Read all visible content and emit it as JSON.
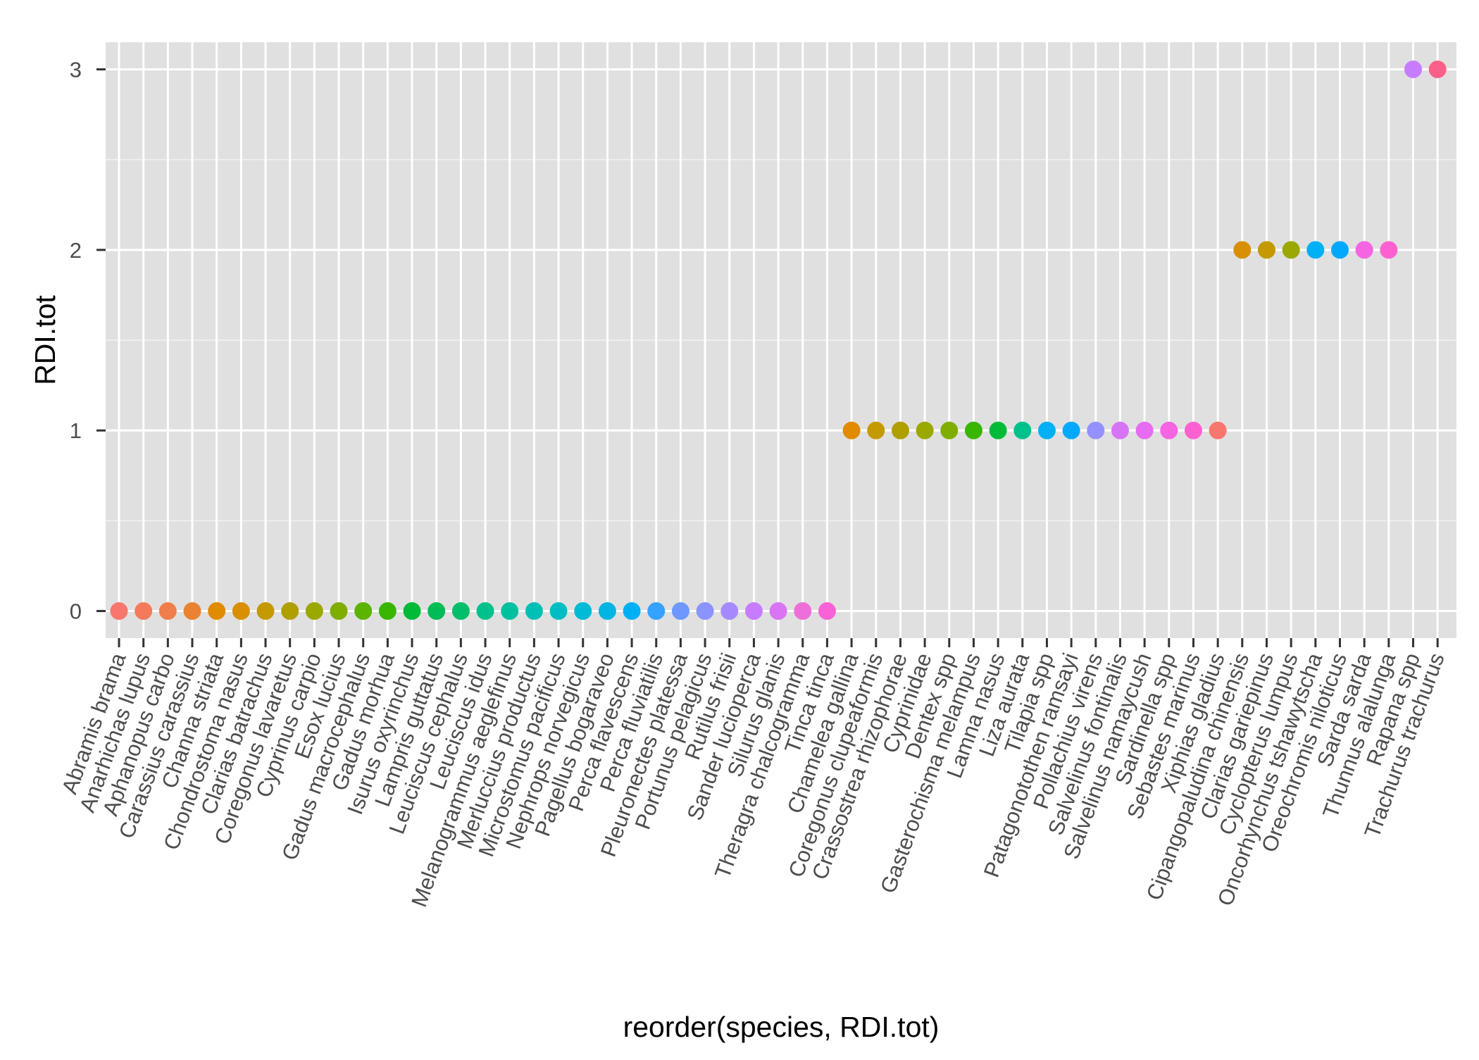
{
  "chart_data": {
    "type": "scatter",
    "xlabel": "reorder(species, RDI.tot)",
    "ylabel": "RDI.tot",
    "ylim": [
      -0.15,
      3.15
    ],
    "y_ticks": [
      0,
      1,
      2,
      3
    ],
    "grid": true,
    "legend": "none",
    "panel_background": "#e0e0e0",
    "grid_color": "#ffffff",
    "categories": [
      "Abramis brama",
      "Anarhichas lupus",
      "Aphanopus carbo",
      "Carassius carassius",
      "Channa striata",
      "Chondrostoma nasus",
      "Clarias batrachus",
      "Coregonus lavaretus",
      "Cyprinus carpio",
      "Esox lucius",
      "Gadus macrocephalus",
      "Gadus morhua",
      "Isurus oxyrinchus",
      "Lampris guttatus",
      "Leuciscus cephalus",
      "Leuciscus idus",
      "Melanogrammus aeglefinus",
      "Merluccius productus",
      "Microstomus pacificus",
      "Nephrops norvegicus",
      "Pagellus bogaraveo",
      "Perca flavescens",
      "Perca fluviatilis",
      "Pleuronectes platessa",
      "Portunus pelagicus",
      "Rutilus frisii",
      "Sander lucioperca",
      "Silurus glanis",
      "Theragra chalcogramma",
      "Tinca tinca",
      "Chamelea gallina",
      "Coregonus clupeaformis",
      "Crassostrea rhizophorae",
      "Cyprinidae",
      "Dentex spp",
      "Gasterochisma melampus",
      "Lamna nasus",
      "Liza aurata",
      "Tilapia spp",
      "Patagonotothen ramsayi",
      "Pollachius virens",
      "Salvelinus fontinalis",
      "Salvelinus namaycush",
      "Sardinella spp",
      "Sebastes marinus",
      "Xiphias gladius",
      "Cipangopaludina chinensis",
      "Clarias gariepinus",
      "Cyclopterus lumpus",
      "Oncorhynchus tshawytscha",
      "Oreochromis niloticus",
      "Sarda sarda",
      "Thunnus alalunga",
      "Rapana spp",
      "Trachurus trachurus"
    ],
    "values": [
      0,
      0,
      0,
      0,
      0,
      0,
      0,
      0,
      0,
      0,
      0,
      0,
      0,
      0,
      0,
      0,
      0,
      0,
      0,
      0,
      0,
      0,
      0,
      0,
      0,
      0,
      0,
      0,
      0,
      0,
      1,
      1,
      1,
      1,
      1,
      1,
      1,
      1,
      1,
      1,
      1,
      1,
      1,
      1,
      1,
      1,
      2,
      2,
      2,
      2,
      2,
      2,
      2,
      3,
      3
    ],
    "colors": [
      "#f8766d",
      "#f47a5c",
      "#f07e4c",
      "#ea8331",
      "#e08b00",
      "#d89000",
      "#c49a00",
      "#b09f00",
      "#9ba800",
      "#7fae00",
      "#5cb300",
      "#39b600",
      "#00ba38",
      "#00bc56",
      "#00be6a",
      "#00c08b",
      "#00c0a0",
      "#00bfb4",
      "#00bdc4",
      "#00bad6",
      "#00b5e2",
      "#00b0f6",
      "#35a2ff",
      "#6e98ff",
      "#8b93ff",
      "#a58aff",
      "#c77cff",
      "#d974f4",
      "#ee6fd8",
      "#fb61d7",
      "#e08b00",
      "#c49a00",
      "#b09f00",
      "#9ba800",
      "#7fae00",
      "#39b600",
      "#00ba38",
      "#00c08b",
      "#00b0f6",
      "#00a9ff",
      "#9590ff",
      "#d774f5",
      "#e76bf3",
      "#f564e3",
      "#fd61d1",
      "#f8766d",
      "#d89000",
      "#c49a00",
      "#9ba800",
      "#00b0f6",
      "#00a9ff",
      "#f564e3",
      "#fd61d1",
      "#c77cff",
      "#fb5f8a"
    ]
  }
}
